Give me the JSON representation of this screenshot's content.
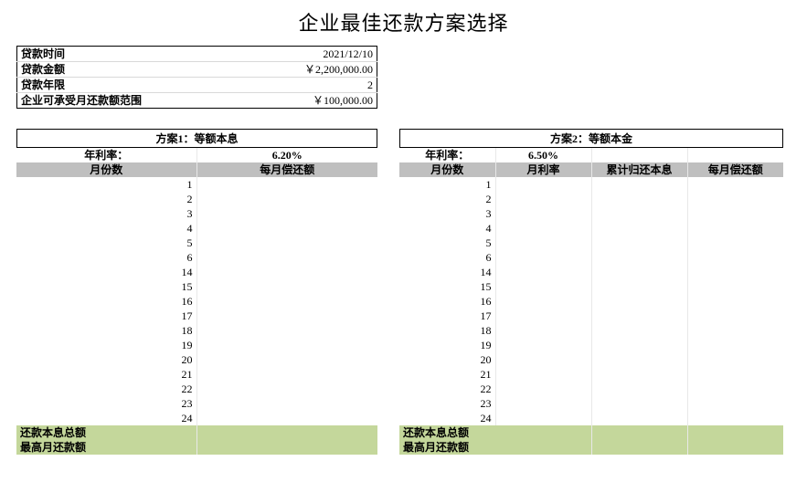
{
  "title": "企业最佳还款方案选择",
  "info": {
    "rows": [
      {
        "label": "贷款时间",
        "value": "2021/12/10"
      },
      {
        "label": "贷款金额",
        "value": "￥2,200,000.00"
      },
      {
        "label": "贷款年限",
        "value": "2"
      },
      {
        "label": "企业可承受月还款额范围",
        "value": "￥100,000.00"
      }
    ]
  },
  "months": [
    1,
    2,
    3,
    4,
    5,
    6,
    14,
    15,
    16,
    17,
    18,
    19,
    20,
    21,
    22,
    23,
    24
  ],
  "plan1": {
    "title": "方案1：等额本息",
    "rate_label": "年利率：",
    "rate_value": "6.20%",
    "col1": "月份数",
    "col2": "每月偿还额",
    "summary1": "还款本息总额",
    "summary2": "最高月还款额"
  },
  "plan2": {
    "title": "方案2：等额本金",
    "rate_label": "年利率：",
    "rate_value": "6.50%",
    "col1": "月份数",
    "col2": "月利率",
    "col3": "累计归还本息",
    "col4": "每月偿还额",
    "summary1": "还款本息总额",
    "summary2": "最高月还款额"
  },
  "colors": {
    "header_gray": "#bfbfbf",
    "summary_green": "#c4d79b",
    "grid": "#e8e8e8"
  }
}
